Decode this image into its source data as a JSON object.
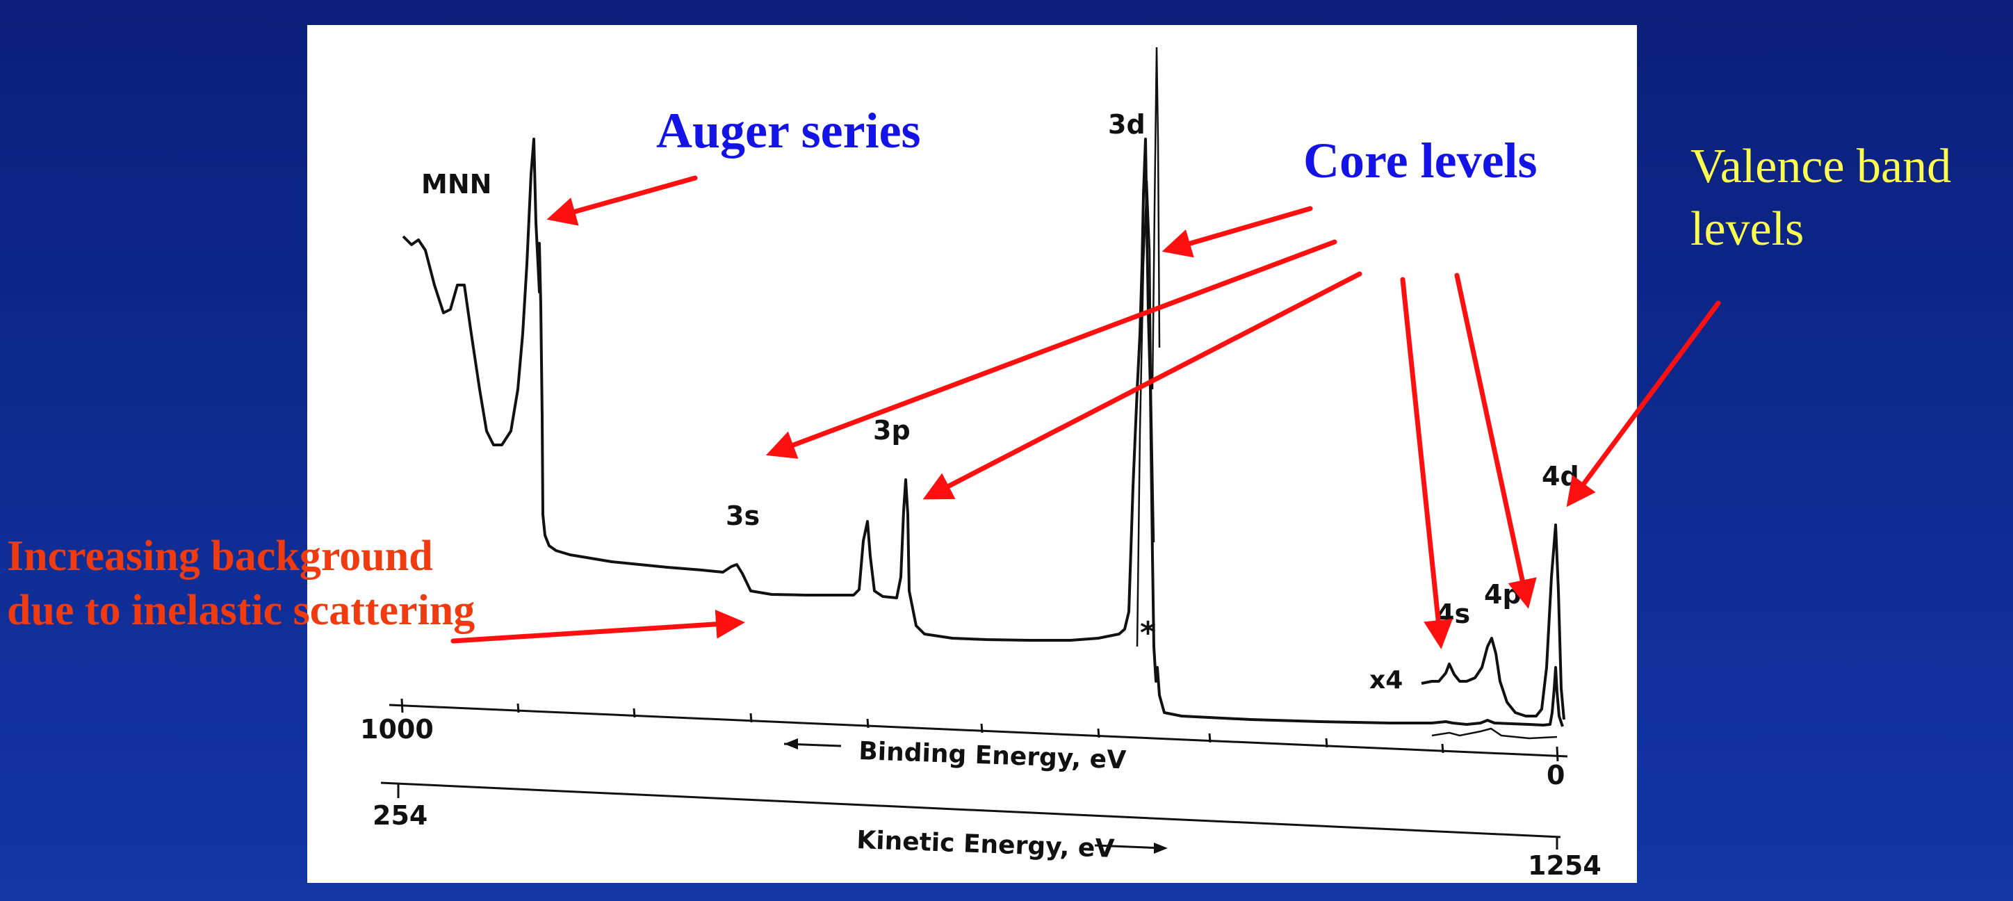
{
  "annotations": {
    "auger": "Auger series",
    "core": "Core levels",
    "valence_line1": "Valence band",
    "valence_line2": "levels",
    "background_line1": "Increasing background",
    "background_line2": "due to inelastic scattering"
  },
  "peaks": {
    "mnn": "MNN",
    "p3d": "3d",
    "p3p": "3p",
    "p3s": "3s",
    "p4d": "4d",
    "p4p": "4p",
    "p4s": "4s",
    "x4": "x4",
    "star": "*"
  },
  "axes": {
    "binding_label": "Binding Energy, eV",
    "binding_left": "1000",
    "binding_right": "0",
    "kinetic_label": "Kinetic Energy, eV",
    "kinetic_left": "254",
    "kinetic_right": "1254"
  },
  "colors": {
    "background": "#1236a6",
    "panel": "#ffffff",
    "arrow": "#ff1010",
    "blue_text": "#1313e6",
    "red_text": "#f03a10",
    "yellow_text": "#ffff4d"
  }
}
